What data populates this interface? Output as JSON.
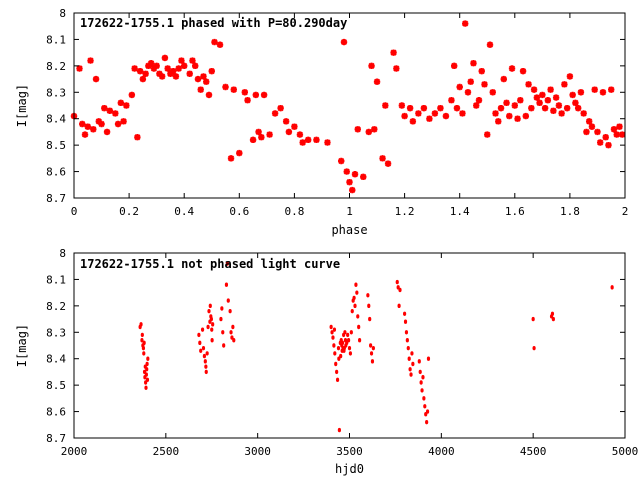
{
  "colors": {
    "points": "#ff0000",
    "frame": "#000000",
    "background": "#ffffff"
  },
  "chart_data": [
    {
      "type": "scatter",
      "title": "172622-1755.1 phased with P=80.290day",
      "xlabel": "phase",
      "ylabel": "I[mag]",
      "xlim": [
        0,
        2
      ],
      "ylim": [
        8.0,
        8.7
      ],
      "y_inverted": true,
      "grid": false,
      "marker": "star",
      "xticks": [
        "0",
        "0.2",
        "0.4",
        "0.6",
        "0.8",
        "1",
        "1.2",
        "1.4",
        "1.6",
        "1.8",
        "2"
      ],
      "yticks": [
        "8",
        "8.1",
        "8.2",
        "8.3",
        "8.4",
        "8.5",
        "8.6",
        "8.7"
      ],
      "points": [
        [
          0.0,
          8.39
        ],
        [
          0.02,
          8.21
        ],
        [
          0.03,
          8.42
        ],
        [
          0.04,
          8.46
        ],
        [
          0.05,
          8.43
        ],
        [
          0.06,
          8.18
        ],
        [
          0.07,
          8.44
        ],
        [
          0.08,
          8.25
        ],
        [
          0.09,
          8.41
        ],
        [
          0.1,
          8.42
        ],
        [
          0.11,
          8.36
        ],
        [
          0.12,
          8.45
        ],
        [
          0.13,
          8.37
        ],
        [
          0.15,
          8.38
        ],
        [
          0.16,
          8.42
        ],
        [
          0.17,
          8.34
        ],
        [
          0.18,
          8.41
        ],
        [
          0.19,
          8.35
        ],
        [
          0.21,
          8.31
        ],
        [
          0.22,
          8.21
        ],
        [
          0.23,
          8.47
        ],
        [
          0.24,
          8.22
        ],
        [
          0.25,
          8.25
        ],
        [
          0.26,
          8.23
        ],
        [
          0.27,
          8.2
        ],
        [
          0.28,
          8.19
        ],
        [
          0.29,
          8.21
        ],
        [
          0.3,
          8.2
        ],
        [
          0.31,
          8.23
        ],
        [
          0.32,
          8.24
        ],
        [
          0.33,
          8.17
        ],
        [
          0.34,
          8.21
        ],
        [
          0.35,
          8.23
        ],
        [
          0.36,
          8.22
        ],
        [
          0.37,
          8.24
        ],
        [
          0.38,
          8.21
        ],
        [
          0.39,
          8.18
        ],
        [
          0.4,
          8.2
        ],
        [
          0.42,
          8.23
        ],
        [
          0.43,
          8.18
        ],
        [
          0.44,
          8.2
        ],
        [
          0.45,
          8.25
        ],
        [
          0.46,
          8.29
        ],
        [
          0.47,
          8.24
        ],
        [
          0.48,
          8.26
        ],
        [
          0.49,
          8.31
        ],
        [
          0.5,
          8.22
        ],
        [
          0.51,
          8.11
        ],
        [
          0.53,
          8.12
        ],
        [
          0.55,
          8.28
        ],
        [
          0.57,
          8.55
        ],
        [
          0.58,
          8.29
        ],
        [
          0.6,
          8.53
        ],
        [
          0.62,
          8.3
        ],
        [
          0.63,
          8.33
        ],
        [
          0.65,
          8.48
        ],
        [
          0.66,
          8.31
        ],
        [
          0.67,
          8.45
        ],
        [
          0.68,
          8.47
        ],
        [
          0.69,
          8.31
        ],
        [
          0.71,
          8.46
        ],
        [
          0.73,
          8.38
        ],
        [
          0.75,
          8.36
        ],
        [
          0.77,
          8.41
        ],
        [
          0.78,
          8.45
        ],
        [
          0.8,
          8.43
        ],
        [
          0.82,
          8.46
        ],
        [
          0.83,
          8.49
        ],
        [
          0.85,
          8.48
        ],
        [
          0.88,
          8.48
        ],
        [
          0.92,
          8.49
        ],
        [
          0.97,
          8.56
        ],
        [
          0.98,
          8.11
        ],
        [
          0.99,
          8.6
        ],
        [
          1.0,
          8.64
        ],
        [
          1.01,
          8.67
        ],
        [
          1.02,
          8.61
        ],
        [
          1.03,
          8.44
        ],
        [
          1.05,
          8.62
        ],
        [
          1.07,
          8.45
        ],
        [
          1.08,
          8.2
        ],
        [
          1.09,
          8.44
        ],
        [
          1.1,
          8.26
        ],
        [
          1.12,
          8.55
        ],
        [
          1.13,
          8.35
        ],
        [
          1.14,
          8.57
        ],
        [
          1.16,
          8.15
        ],
        [
          1.17,
          8.21
        ],
        [
          1.19,
          8.35
        ],
        [
          1.2,
          8.39
        ],
        [
          1.22,
          8.36
        ],
        [
          1.23,
          8.41
        ],
        [
          1.25,
          8.38
        ],
        [
          1.27,
          8.36
        ],
        [
          1.29,
          8.4
        ],
        [
          1.31,
          8.38
        ],
        [
          1.33,
          8.36
        ],
        [
          1.35,
          8.39
        ],
        [
          1.37,
          8.33
        ],
        [
          1.38,
          8.2
        ],
        [
          1.39,
          8.36
        ],
        [
          1.4,
          8.28
        ],
        [
          1.41,
          8.38
        ],
        [
          1.42,
          8.04
        ],
        [
          1.43,
          8.3
        ],
        [
          1.44,
          8.26
        ],
        [
          1.45,
          8.19
        ],
        [
          1.46,
          8.35
        ],
        [
          1.47,
          8.33
        ],
        [
          1.48,
          8.22
        ],
        [
          1.49,
          8.27
        ],
        [
          1.5,
          8.46
        ],
        [
          1.51,
          8.12
        ],
        [
          1.52,
          8.3
        ],
        [
          1.53,
          8.38
        ],
        [
          1.54,
          8.41
        ],
        [
          1.55,
          8.36
        ],
        [
          1.56,
          8.25
        ],
        [
          1.57,
          8.34
        ],
        [
          1.58,
          8.39
        ],
        [
          1.59,
          8.21
        ],
        [
          1.6,
          8.35
        ],
        [
          1.61,
          8.4
        ],
        [
          1.62,
          8.33
        ],
        [
          1.63,
          8.22
        ],
        [
          1.64,
          8.39
        ],
        [
          1.65,
          8.27
        ],
        [
          1.66,
          8.36
        ],
        [
          1.67,
          8.29
        ],
        [
          1.68,
          8.32
        ],
        [
          1.69,
          8.34
        ],
        [
          1.7,
          8.31
        ],
        [
          1.71,
          8.36
        ],
        [
          1.72,
          8.33
        ],
        [
          1.73,
          8.29
        ],
        [
          1.74,
          8.37
        ],
        [
          1.75,
          8.32
        ],
        [
          1.76,
          8.35
        ],
        [
          1.77,
          8.38
        ],
        [
          1.78,
          8.27
        ],
        [
          1.79,
          8.36
        ],
        [
          1.8,
          8.24
        ],
        [
          1.81,
          8.31
        ],
        [
          1.82,
          8.34
        ],
        [
          1.83,
          8.36
        ],
        [
          1.84,
          8.3
        ],
        [
          1.85,
          8.38
        ],
        [
          1.86,
          8.45
        ],
        [
          1.87,
          8.41
        ],
        [
          1.88,
          8.43
        ],
        [
          1.89,
          8.29
        ],
        [
          1.9,
          8.45
        ],
        [
          1.91,
          8.49
        ],
        [
          1.92,
          8.3
        ],
        [
          1.93,
          8.47
        ],
        [
          1.94,
          8.5
        ],
        [
          1.95,
          8.29
        ],
        [
          1.96,
          8.44
        ],
        [
          1.97,
          8.46
        ],
        [
          1.98,
          8.43
        ],
        [
          1.99,
          8.46
        ]
      ]
    },
    {
      "type": "scatter",
      "title": "172622-1755.1 not phased light curve",
      "xlabel": "hjd0",
      "ylabel": "I[mag]",
      "xlim": [
        2000,
        5000
      ],
      "ylim": [
        8.0,
        8.7
      ],
      "y_inverted": true,
      "grid": false,
      "marker": "dot",
      "xticks": [
        "2000",
        "2500",
        "3000",
        "3500",
        "4000",
        "4500",
        "5000"
      ],
      "yticks": [
        "8",
        "8.1",
        "8.2",
        "8.3",
        "8.4",
        "8.5",
        "8.6",
        "8.7"
      ],
      "points": [
        [
          2360,
          8.28
        ],
        [
          2365,
          8.27
        ],
        [
          2370,
          8.33
        ],
        [
          2372,
          8.31
        ],
        [
          2375,
          8.35
        ],
        [
          2378,
          8.36
        ],
        [
          2380,
          8.38
        ],
        [
          2382,
          8.34
        ],
        [
          2384,
          8.45
        ],
        [
          2386,
          8.47
        ],
        [
          2388,
          8.43
        ],
        [
          2390,
          8.49
        ],
        [
          2392,
          8.51
        ],
        [
          2394,
          8.46
        ],
        [
          2396,
          8.44
        ],
        [
          2398,
          8.42
        ],
        [
          2400,
          8.48
        ],
        [
          2402,
          8.4
        ],
        [
          2680,
          8.31
        ],
        [
          2685,
          8.34
        ],
        [
          2690,
          8.37
        ],
        [
          2700,
          8.29
        ],
        [
          2705,
          8.36
        ],
        [
          2710,
          8.39
        ],
        [
          2715,
          8.41
        ],
        [
          2718,
          8.43
        ],
        [
          2720,
          8.45
        ],
        [
          2725,
          8.38
        ],
        [
          2730,
          8.28
        ],
        [
          2735,
          8.22
        ],
        [
          2740,
          8.26
        ],
        [
          2742,
          8.2
        ],
        [
          2745,
          8.24
        ],
        [
          2748,
          8.25
        ],
        [
          2750,
          8.29
        ],
        [
          2752,
          8.33
        ],
        [
          2755,
          8.27
        ],
        [
          2800,
          8.25
        ],
        [
          2805,
          8.21
        ],
        [
          2810,
          8.3
        ],
        [
          2815,
          8.35
        ],
        [
          2830,
          8.12
        ],
        [
          2835,
          8.04
        ],
        [
          2840,
          8.18
        ],
        [
          2850,
          8.22
        ],
        [
          2855,
          8.3
        ],
        [
          2860,
          8.32
        ],
        [
          2865,
          8.28
        ],
        [
          2870,
          8.33
        ],
        [
          3400,
          8.28
        ],
        [
          3405,
          8.3
        ],
        [
          3410,
          8.32
        ],
        [
          3415,
          8.35
        ],
        [
          3418,
          8.29
        ],
        [
          3420,
          8.38
        ],
        [
          3425,
          8.42
        ],
        [
          3430,
          8.45
        ],
        [
          3435,
          8.48
        ],
        [
          3440,
          8.36
        ],
        [
          3442,
          8.4
        ],
        [
          3445,
          8.67
        ],
        [
          3450,
          8.34
        ],
        [
          3452,
          8.39
        ],
        [
          3455,
          8.33
        ],
        [
          3458,
          8.35
        ],
        [
          3460,
          8.37
        ],
        [
          3462,
          8.34
        ],
        [
          3465,
          8.36
        ],
        [
          3468,
          8.31
        ],
        [
          3470,
          8.37
        ],
        [
          3472,
          8.36
        ],
        [
          3475,
          8.3
        ],
        [
          3478,
          8.33
        ],
        [
          3480,
          8.35
        ],
        [
          3485,
          8.34
        ],
        [
          3490,
          8.31
        ],
        [
          3495,
          8.33
        ],
        [
          3500,
          8.36
        ],
        [
          3505,
          8.38
        ],
        [
          3510,
          8.3
        ],
        [
          3515,
          8.22
        ],
        [
          3520,
          8.18
        ],
        [
          3525,
          8.17
        ],
        [
          3530,
          8.2
        ],
        [
          3535,
          8.12
        ],
        [
          3540,
          8.15
        ],
        [
          3545,
          8.24
        ],
        [
          3550,
          8.28
        ],
        [
          3555,
          8.33
        ],
        [
          3600,
          8.16
        ],
        [
          3605,
          8.2
        ],
        [
          3610,
          8.25
        ],
        [
          3615,
          8.35
        ],
        [
          3620,
          8.38
        ],
        [
          3625,
          8.41
        ],
        [
          3630,
          8.36
        ],
        [
          3760,
          8.11
        ],
        [
          3765,
          8.13
        ],
        [
          3770,
          8.2
        ],
        [
          3775,
          8.14
        ],
        [
          3800,
          8.23
        ],
        [
          3805,
          8.26
        ],
        [
          3810,
          8.3
        ],
        [
          3815,
          8.33
        ],
        [
          3820,
          8.36
        ],
        [
          3825,
          8.4
        ],
        [
          3830,
          8.44
        ],
        [
          3835,
          8.46
        ],
        [
          3840,
          8.38
        ],
        [
          3845,
          8.42
        ],
        [
          3880,
          8.41
        ],
        [
          3885,
          8.45
        ],
        [
          3890,
          8.49
        ],
        [
          3895,
          8.52
        ],
        [
          3900,
          8.47
        ],
        [
          3905,
          8.55
        ],
        [
          3910,
          8.58
        ],
        [
          3915,
          8.61
        ],
        [
          3920,
          8.64
        ],
        [
          3925,
          8.6
        ],
        [
          3930,
          8.4
        ],
        [
          4500,
          8.25
        ],
        [
          4505,
          8.36
        ],
        [
          4600,
          8.24
        ],
        [
          4605,
          8.23
        ],
        [
          4610,
          8.25
        ],
        [
          4930,
          8.13
        ]
      ]
    }
  ]
}
